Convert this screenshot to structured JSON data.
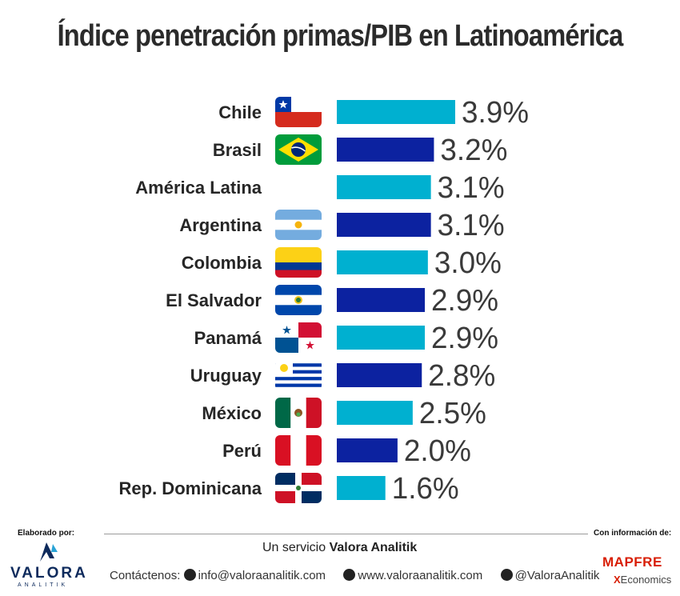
{
  "chart_data": {
    "type": "bar",
    "orientation": "horizontal",
    "title": "Índice penetración primas/PIB en Latinoamérica",
    "categories": [
      "Chile",
      "Brasil",
      "América Latina",
      "Argentina",
      "Colombia",
      "El Salvador",
      "Panamá",
      "Uruguay",
      "México",
      "Perú",
      "Rep. Dominicana"
    ],
    "values": [
      3.9,
      3.2,
      3.1,
      3.1,
      3.0,
      2.9,
      2.9,
      2.8,
      2.5,
      2.0,
      1.6
    ],
    "value_labels": [
      "3.9%",
      "3.2%",
      "3.1%",
      "3.1%",
      "3.0%",
      "2.9%",
      "2.9%",
      "2.8%",
      "2.5%",
      "2.0%",
      "1.6%"
    ],
    "bar_colors": [
      "#00b0d0",
      "#0c22a0",
      "#00b0d0",
      "#0c22a0",
      "#00b0d0",
      "#0c22a0",
      "#00b0d0",
      "#0c22a0",
      "#00b0d0",
      "#0c22a0",
      "#00b0d0"
    ],
    "flags": [
      "chile-flag",
      "brazil-flag",
      "",
      "argentina-flag",
      "colombia-flag",
      "el-salvador-flag",
      "panama-flag",
      "uruguay-flag",
      "mexico-flag",
      "peru-flag",
      "dominican-republic-flag"
    ],
    "xlim": [
      0,
      3.9
    ],
    "grid": false,
    "legend": "none"
  },
  "footer": {
    "elaborado": "Elaborado por:",
    "con_informacion": "Con información de:",
    "servicio_prefix": "Un servicio ",
    "servicio_brand": "Valora Analitik",
    "contact_prefix": "Contáctenos:",
    "email": "info@valoraanalitik.com",
    "website": "www.valoraanalitik.com",
    "twitter": "@ValoraAnalitik",
    "valora_logo_text": "VALORA",
    "valora_logo_sub": "ANALITIK",
    "mapfre_logo_text": "MAPFRE",
    "economics_logo_text": "Economics"
  },
  "colors": {
    "light_bar": "#00b0d0",
    "dark_bar": "#0c22a0",
    "mapfre_red": "#d81e05",
    "valora_navy": "#0d2a5c"
  }
}
